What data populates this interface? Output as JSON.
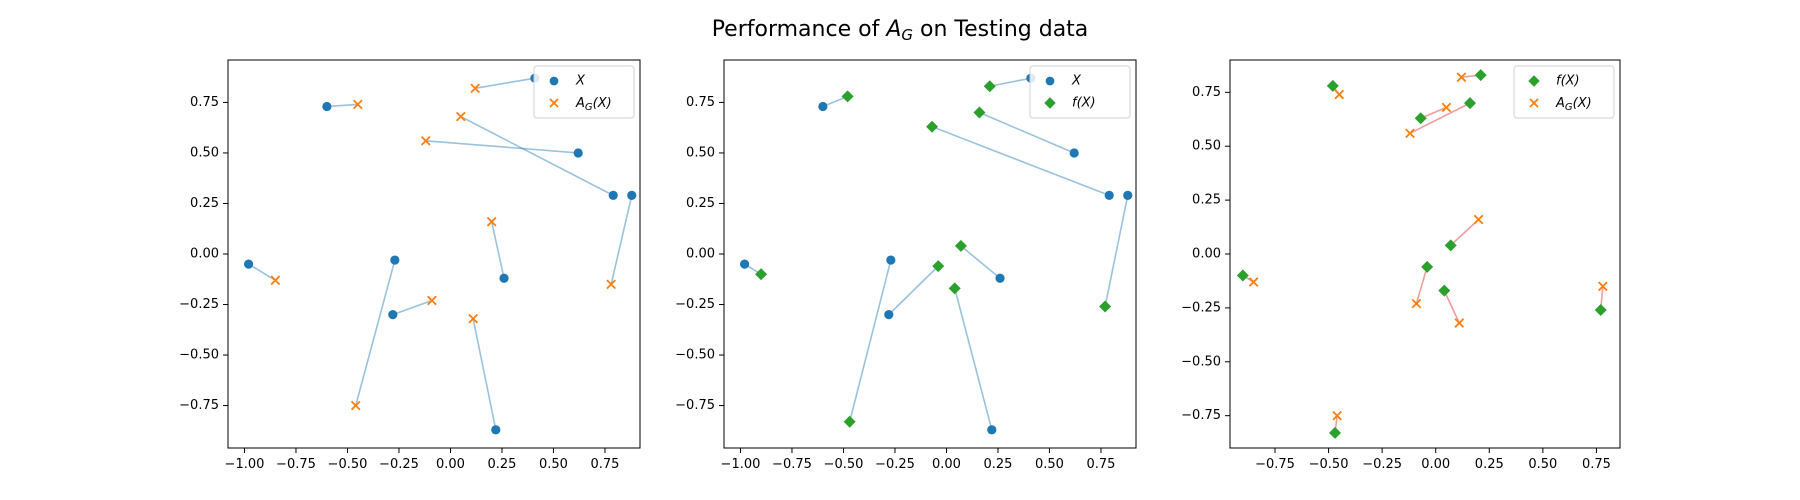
{
  "title": "Performance of A_G on Testing data",
  "title_parts": {
    "prefix": "Performance of ",
    "symbol": "A",
    "subscript": "G",
    "suffix": " on Testing data"
  },
  "colors": {
    "x": "#1f77b4",
    "ag": "#ff7f0e",
    "fx": "#2ca02c",
    "link_blue": "#1f77b4",
    "link_red": "#d62728"
  },
  "chart_data": [
    {
      "type": "scatter",
      "xlim": [
        -1.08,
        0.92
      ],
      "ylim": [
        -0.96,
        0.96
      ],
      "xticks": [
        -1.0,
        -0.75,
        -0.5,
        -0.25,
        0.0,
        0.25,
        0.5,
        0.75
      ],
      "xtick_labels": [
        "−1.00",
        "−0.75",
        "−0.50",
        "−0.25",
        "0.00",
        "0.25",
        "0.50",
        "0.75"
      ],
      "yticks": [
        -0.75,
        -0.5,
        -0.25,
        0.0,
        0.25,
        0.5,
        0.75
      ],
      "ytick_labels": [
        "−0.75",
        "−0.50",
        "−0.25",
        "0.00",
        "0.25",
        "0.50",
        "0.75"
      ],
      "legend": {
        "position": "top-right",
        "entries": [
          {
            "label": "X",
            "series": "x"
          },
          {
            "label": "A_G(X)",
            "series": "ag"
          }
        ]
      },
      "link_color": "link_blue",
      "series": [
        {
          "name": "X",
          "key": "x",
          "marker": "circle",
          "points": [
            [
              0.41,
              0.87
            ],
            [
              -0.6,
              0.73
            ],
            [
              0.62,
              0.5
            ],
            [
              0.79,
              0.29
            ],
            [
              0.88,
              0.29
            ],
            [
              -0.98,
              -0.05
            ],
            [
              -0.27,
              -0.03
            ],
            [
              0.26,
              -0.12
            ],
            [
              -0.28,
              -0.3
            ],
            [
              0.22,
              -0.87
            ]
          ]
        },
        {
          "name": "A_G(X)",
          "key": "ag",
          "marker": "x",
          "points": [
            [
              0.12,
              0.82
            ],
            [
              -0.45,
              0.74
            ],
            [
              -0.12,
              0.56
            ],
            [
              0.05,
              0.68
            ],
            [
              0.78,
              -0.15
            ],
            [
              -0.85,
              -0.13
            ],
            [
              -0.46,
              -0.75
            ],
            [
              0.2,
              0.16
            ],
            [
              -0.09,
              -0.23
            ],
            [
              0.11,
              -0.32
            ]
          ]
        }
      ]
    },
    {
      "type": "scatter",
      "xlim": [
        -1.08,
        0.92
      ],
      "ylim": [
        -0.96,
        0.96
      ],
      "xticks": [
        -1.0,
        -0.75,
        -0.5,
        -0.25,
        0.0,
        0.25,
        0.5,
        0.75
      ],
      "xtick_labels": [
        "−1.00",
        "−0.75",
        "−0.50",
        "−0.25",
        "0.00",
        "0.25",
        "0.50",
        "0.75"
      ],
      "yticks": [
        -0.75,
        -0.5,
        -0.25,
        0.0,
        0.25,
        0.5,
        0.75
      ],
      "ytick_labels": [
        "−0.75",
        "−0.50",
        "−0.25",
        "0.00",
        "0.25",
        "0.50",
        "0.75"
      ],
      "legend": {
        "position": "top-right",
        "entries": [
          {
            "label": "X",
            "series": "x"
          },
          {
            "label": "f(X)",
            "series": "fx"
          }
        ]
      },
      "link_color": "link_blue",
      "series": [
        {
          "name": "X",
          "key": "x",
          "marker": "circle",
          "points": [
            [
              0.41,
              0.87
            ],
            [
              -0.6,
              0.73
            ],
            [
              0.62,
              0.5
            ],
            [
              0.79,
              0.29
            ],
            [
              0.88,
              0.29
            ],
            [
              -0.98,
              -0.05
            ],
            [
              -0.27,
              -0.03
            ],
            [
              0.26,
              -0.12
            ],
            [
              -0.28,
              -0.3
            ],
            [
              0.22,
              -0.87
            ]
          ]
        },
        {
          "name": "f(X)",
          "key": "fx",
          "marker": "diamond",
          "points": [
            [
              0.21,
              0.83
            ],
            [
              -0.48,
              0.78
            ],
            [
              0.16,
              0.7
            ],
            [
              -0.07,
              0.63
            ],
            [
              0.77,
              -0.26
            ],
            [
              -0.9,
              -0.1
            ],
            [
              -0.47,
              -0.83
            ],
            [
              0.07,
              0.04
            ],
            [
              -0.04,
              -0.06
            ],
            [
              0.04,
              -0.17
            ]
          ]
        }
      ]
    },
    {
      "type": "scatter",
      "xlim": [
        -0.96,
        0.86
      ],
      "ylim": [
        -0.9,
        0.9
      ],
      "xticks": [
        -0.75,
        -0.5,
        -0.25,
        0.0,
        0.25,
        0.5,
        0.75
      ],
      "xtick_labels": [
        "−0.75",
        "−0.50",
        "−0.25",
        "0.00",
        "0.25",
        "0.50",
        "0.75"
      ],
      "yticks": [
        -0.75,
        -0.5,
        -0.25,
        0.0,
        0.25,
        0.5,
        0.75
      ],
      "ytick_labels": [
        "−0.75",
        "−0.50",
        "−0.25",
        "0.00",
        "0.25",
        "0.50",
        "0.75"
      ],
      "legend": {
        "position": "top-right",
        "entries": [
          {
            "label": "f(X)",
            "series": "fx"
          },
          {
            "label": "A_G(X)",
            "series": "ag"
          }
        ]
      },
      "link_color": "link_red",
      "series": [
        {
          "name": "f(X)",
          "key": "fx",
          "marker": "diamond",
          "points": [
            [
              0.21,
              0.83
            ],
            [
              -0.48,
              0.78
            ],
            [
              0.16,
              0.7
            ],
            [
              -0.07,
              0.63
            ],
            [
              0.77,
              -0.26
            ],
            [
              -0.9,
              -0.1
            ],
            [
              -0.47,
              -0.83
            ],
            [
              0.07,
              0.04
            ],
            [
              -0.04,
              -0.06
            ],
            [
              0.04,
              -0.17
            ]
          ]
        },
        {
          "name": "A_G(X)",
          "key": "ag",
          "marker": "x",
          "points": [
            [
              0.12,
              0.82
            ],
            [
              -0.45,
              0.74
            ],
            [
              -0.12,
              0.56
            ],
            [
              0.05,
              0.68
            ],
            [
              0.78,
              -0.15
            ],
            [
              -0.85,
              -0.13
            ],
            [
              -0.46,
              -0.75
            ],
            [
              0.2,
              0.16
            ],
            [
              -0.09,
              -0.23
            ],
            [
              0.11,
              -0.32
            ]
          ]
        }
      ]
    }
  ]
}
